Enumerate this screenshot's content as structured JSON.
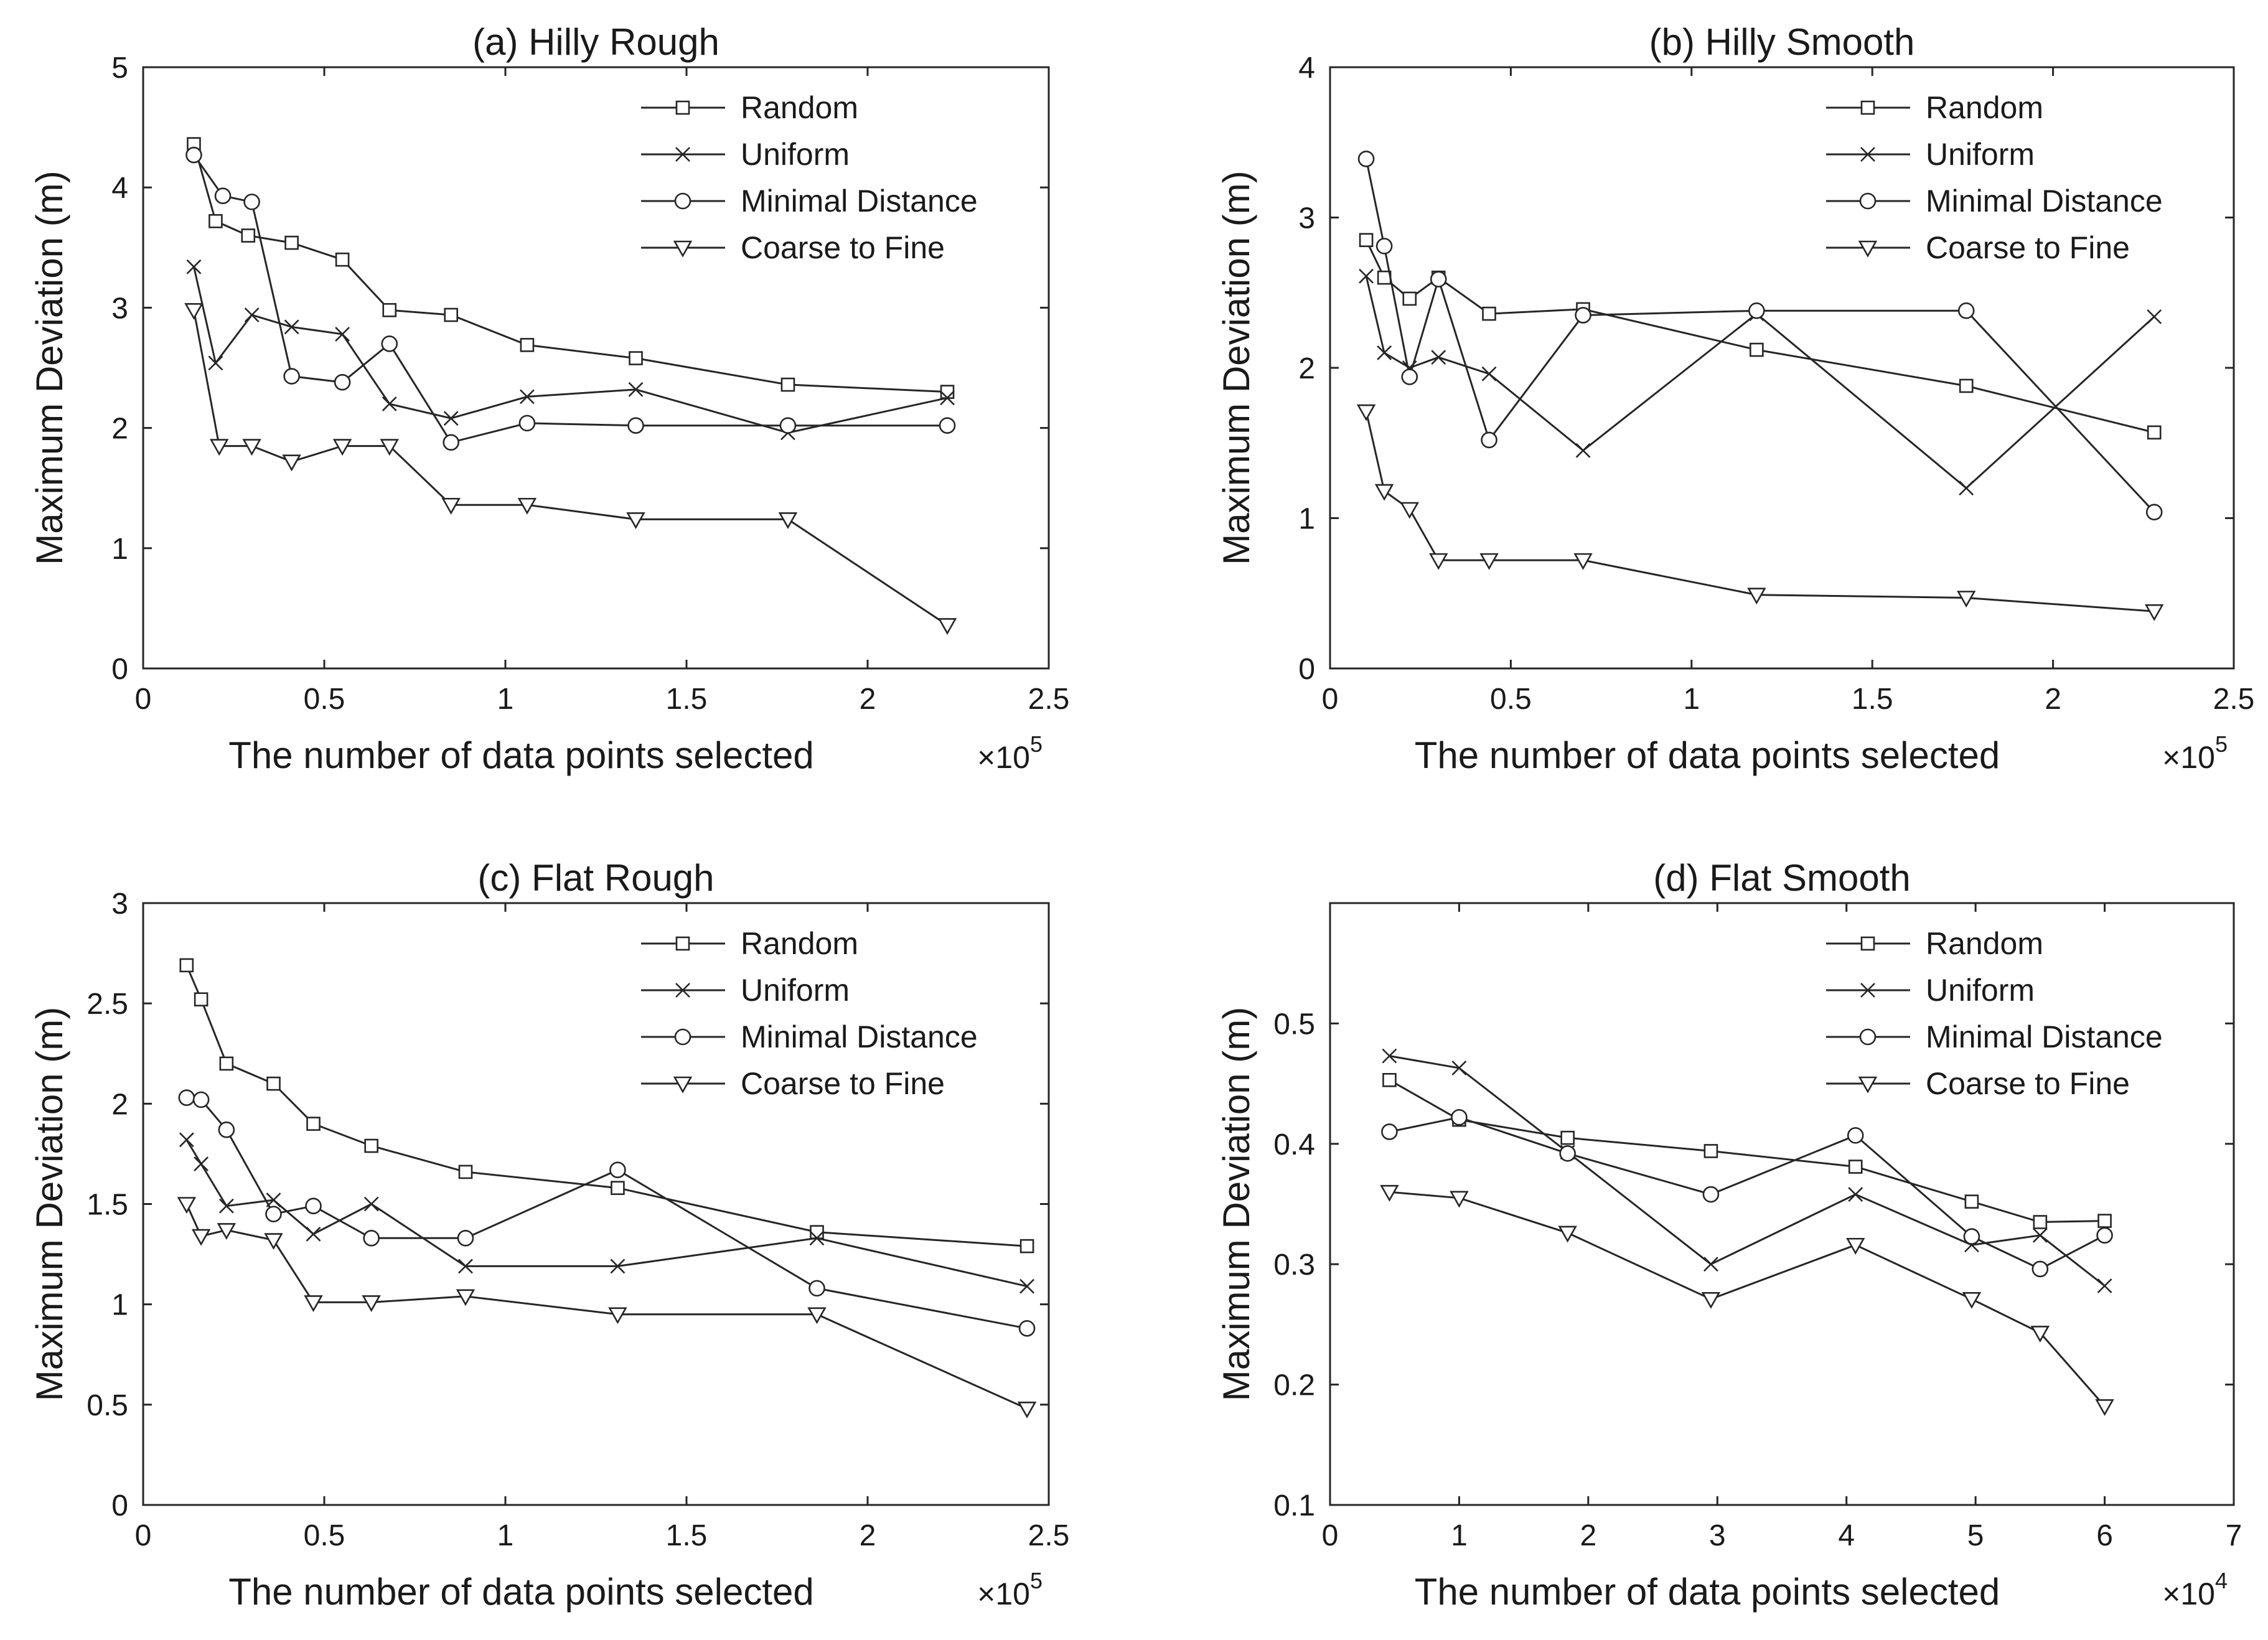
{
  "chart_data": [
    {
      "type": "line",
      "title": "(a) Hilly Rough",
      "xlabel": "The number of data points selected",
      "ylabel": "Maximum Deviation (m)",
      "x_exponent": "5",
      "xlim": [
        0,
        2.5
      ],
      "ylim": [
        0,
        5
      ],
      "xticks": [
        0,
        0.5,
        1,
        1.5,
        2,
        2.5
      ],
      "xtick_labels": [
        "0",
        "0.5",
        "1",
        "1.5",
        "2",
        "2.5"
      ],
      "yticks": [
        0,
        1,
        2,
        3,
        4,
        5
      ],
      "ytick_labels": [
        "0",
        "1",
        "2",
        "3",
        "4",
        "5"
      ],
      "legend_position": "top-right",
      "series": [
        {
          "name": "Random",
          "marker": "square",
          "x": [
            0.14,
            0.2,
            0.29,
            0.41,
            0.55,
            0.68,
            0.85,
            1.06,
            1.36,
            1.78,
            2.22
          ],
          "y": [
            4.36,
            3.72,
            3.6,
            3.54,
            3.4,
            2.98,
            2.94,
            2.69,
            2.58,
            2.36,
            2.3
          ]
        },
        {
          "name": "Uniform",
          "marker": "x",
          "x": [
            0.14,
            0.2,
            0.3,
            0.41,
            0.55,
            0.68,
            0.85,
            1.06,
            1.36,
            1.78,
            2.22
          ],
          "y": [
            3.34,
            2.54,
            2.94,
            2.84,
            2.78,
            2.2,
            2.08,
            2.26,
            2.32,
            1.96,
            2.25
          ]
        },
        {
          "name": "Minimal Distance",
          "marker": "circle",
          "x": [
            0.14,
            0.22,
            0.3,
            0.41,
            0.55,
            0.68,
            0.85,
            1.06,
            1.36,
            1.78,
            2.22
          ],
          "y": [
            4.27,
            3.93,
            3.88,
            2.43,
            2.38,
            2.7,
            1.88,
            2.04,
            2.02,
            2.02,
            2.02
          ]
        },
        {
          "name": "Coarse to Fine",
          "marker": "triangle-down",
          "x": [
            0.14,
            0.21,
            0.3,
            0.41,
            0.55,
            0.68,
            0.85,
            1.06,
            1.36,
            1.78,
            2.22
          ],
          "y": [
            2.98,
            1.85,
            1.85,
            1.72,
            1.85,
            1.85,
            1.36,
            1.36,
            1.24,
            1.24,
            0.36
          ]
        }
      ]
    },
    {
      "type": "line",
      "title": "(b) Hilly Smooth",
      "xlabel": "The number of data points selected",
      "ylabel": "Maximum Deviation (m)",
      "x_exponent": "5",
      "xlim": [
        0,
        2.5
      ],
      "ylim": [
        0,
        4
      ],
      "xticks": [
        0,
        0.5,
        1,
        1.5,
        2,
        2.5
      ],
      "xtick_labels": [
        "0",
        "0.5",
        "1",
        "1.5",
        "2",
        "2.5"
      ],
      "yticks": [
        0,
        1,
        2,
        3,
        4
      ],
      "ytick_labels": [
        "0",
        "1",
        "2",
        "3",
        "4"
      ],
      "legend_position": "top-right",
      "series": [
        {
          "name": "Random",
          "marker": "square",
          "x": [
            0.1,
            0.15,
            0.22,
            0.3,
            0.44,
            0.7,
            1.18,
            1.76,
            2.28
          ],
          "y": [
            2.85,
            2.6,
            2.46,
            2.6,
            2.36,
            2.39,
            2.12,
            1.88,
            1.57
          ]
        },
        {
          "name": "Uniform",
          "marker": "x",
          "x": [
            0.1,
            0.15,
            0.22,
            0.3,
            0.44,
            0.7,
            1.18,
            1.76,
            2.28
          ],
          "y": [
            2.61,
            2.1,
            2.0,
            2.07,
            1.96,
            1.45,
            2.36,
            1.2,
            2.34
          ]
        },
        {
          "name": "Minimal Distance",
          "marker": "circle",
          "x": [
            0.1,
            0.15,
            0.22,
            0.3,
            0.44,
            0.7,
            1.18,
            1.76,
            2.28
          ],
          "y": [
            3.39,
            2.81,
            1.94,
            2.59,
            1.52,
            2.35,
            2.38,
            2.38,
            1.04
          ]
        },
        {
          "name": "Coarse to Fine",
          "marker": "triangle-down",
          "x": [
            0.1,
            0.15,
            0.22,
            0.3,
            0.44,
            0.7,
            1.18,
            1.76,
            2.28
          ],
          "y": [
            1.71,
            1.18,
            1.06,
            0.72,
            0.72,
            0.72,
            0.49,
            0.47,
            0.38
          ]
        }
      ]
    },
    {
      "type": "line",
      "title": "(c) Flat Rough",
      "xlabel": "The number of data points selected",
      "ylabel": "Maximum Deviation (m)",
      "x_exponent": "5",
      "xlim": [
        0,
        2.5
      ],
      "ylim": [
        0,
        3
      ],
      "xticks": [
        0,
        0.5,
        1,
        1.5,
        2,
        2.5
      ],
      "xtick_labels": [
        "0",
        "0.5",
        "1",
        "1.5",
        "2",
        "2.5"
      ],
      "yticks": [
        0,
        0.5,
        1,
        1.5,
        2,
        2.5,
        3
      ],
      "ytick_labels": [
        "0",
        "0.5",
        "1",
        "1.5",
        "2",
        "2.5",
        "3"
      ],
      "legend_position": "top-right",
      "series": [
        {
          "name": "Random",
          "marker": "square",
          "x": [
            0.12,
            0.16,
            0.23,
            0.36,
            0.47,
            0.63,
            0.89,
            1.31,
            1.86,
            2.44
          ],
          "y": [
            2.69,
            2.52,
            2.2,
            2.1,
            1.9,
            1.79,
            1.66,
            1.58,
            1.36,
            1.29
          ]
        },
        {
          "name": "Uniform",
          "marker": "x",
          "x": [
            0.12,
            0.16,
            0.23,
            0.36,
            0.47,
            0.63,
            0.89,
            1.31,
            1.86,
            2.44
          ],
          "y": [
            1.82,
            1.7,
            1.49,
            1.52,
            1.35,
            1.5,
            1.19,
            1.19,
            1.33,
            1.09
          ]
        },
        {
          "name": "Minimal Distance",
          "marker": "circle",
          "x": [
            0.12,
            0.16,
            0.23,
            0.36,
            0.47,
            0.63,
            0.89,
            1.31,
            1.86,
            2.44
          ],
          "y": [
            2.03,
            2.02,
            1.87,
            1.45,
            1.49,
            1.33,
            1.33,
            1.67,
            1.08,
            0.88
          ]
        },
        {
          "name": "Coarse to Fine",
          "marker": "triangle-down",
          "x": [
            0.12,
            0.16,
            0.23,
            0.36,
            0.47,
            0.63,
            0.89,
            1.31,
            1.86,
            2.44
          ],
          "y": [
            1.5,
            1.34,
            1.37,
            1.32,
            1.01,
            1.01,
            1.04,
            0.95,
            0.95,
            0.48
          ]
        }
      ]
    },
    {
      "type": "line",
      "title": "(d) Flat Smooth",
      "xlabel": "The number of data points selected",
      "ylabel": "Maximum Deviation (m)",
      "x_exponent": "4",
      "xlim": [
        0,
        7
      ],
      "ylim": [
        0.1,
        0.6
      ],
      "xticks": [
        0,
        1,
        2,
        3,
        4,
        5,
        6,
        7
      ],
      "xtick_labels": [
        "0",
        "1",
        "2",
        "3",
        "4",
        "5",
        "6",
        "7"
      ],
      "yticks": [
        0.1,
        0.2,
        0.3,
        0.4,
        0.5
      ],
      "ytick_labels": [
        "0.1",
        "0.2",
        "0.3",
        "0.4",
        "0.5"
      ],
      "legend_position": "top-right",
      "series": [
        {
          "name": "Random",
          "marker": "square",
          "x": [
            0.46,
            1.0,
            1.84,
            2.95,
            4.07,
            4.97,
            5.5,
            6.0
          ],
          "y": [
            0.453,
            0.42,
            0.405,
            0.394,
            0.381,
            0.352,
            0.335,
            0.336
          ]
        },
        {
          "name": "Uniform",
          "marker": "x",
          "x": [
            0.46,
            1.0,
            1.84,
            2.95,
            4.07,
            4.97,
            5.5,
            6.0
          ],
          "y": [
            0.473,
            0.463,
            0.393,
            0.3,
            0.358,
            0.316,
            0.324,
            0.282
          ]
        },
        {
          "name": "Minimal Distance",
          "marker": "circle",
          "x": [
            0.46,
            1.0,
            1.84,
            2.95,
            4.07,
            4.97,
            5.5,
            6.0
          ],
          "y": [
            0.41,
            0.422,
            0.392,
            0.358,
            0.407,
            0.323,
            0.296,
            0.324
          ]
        },
        {
          "name": "Coarse to Fine",
          "marker": "triangle-down",
          "x": [
            0.46,
            1.0,
            1.84,
            2.95,
            4.07,
            4.97,
            5.5,
            6.0
          ],
          "y": [
            0.36,
            0.355,
            0.326,
            0.271,
            0.316,
            0.271,
            0.243,
            0.182
          ]
        }
      ]
    }
  ]
}
